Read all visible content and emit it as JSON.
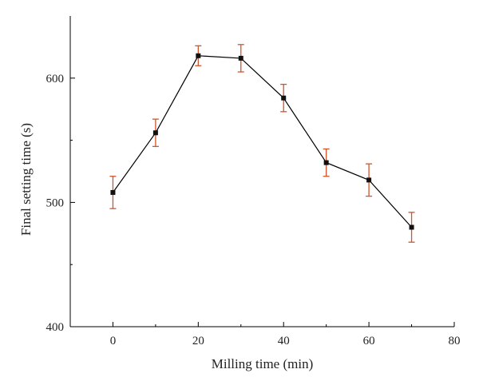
{
  "chart_data": {
    "type": "line",
    "xlabel": "Milling time (min)",
    "ylabel": "Final setting time (s)",
    "xlim": [
      -10,
      80
    ],
    "ylim": [
      400,
      650
    ],
    "x_ticks": [
      0,
      20,
      40,
      60,
      80
    ],
    "y_ticks": [
      400,
      500,
      600
    ],
    "x_minor_ticks": [
      -10,
      10,
      30,
      50,
      70
    ],
    "y_minor_ticks": [
      450,
      550
    ],
    "grid": false,
    "legend": "none",
    "series": [
      {
        "x": [
          0,
          10,
          20,
          30,
          40,
          50,
          60,
          70
        ],
        "y": [
          508,
          556,
          618,
          616,
          584,
          532,
          518,
          480
        ],
        "error": [
          13,
          11,
          8,
          11,
          11,
          11,
          13,
          12
        ],
        "line_color": "#000000",
        "marker_color": "#111111",
        "error_color": "#d2542a"
      }
    ]
  }
}
